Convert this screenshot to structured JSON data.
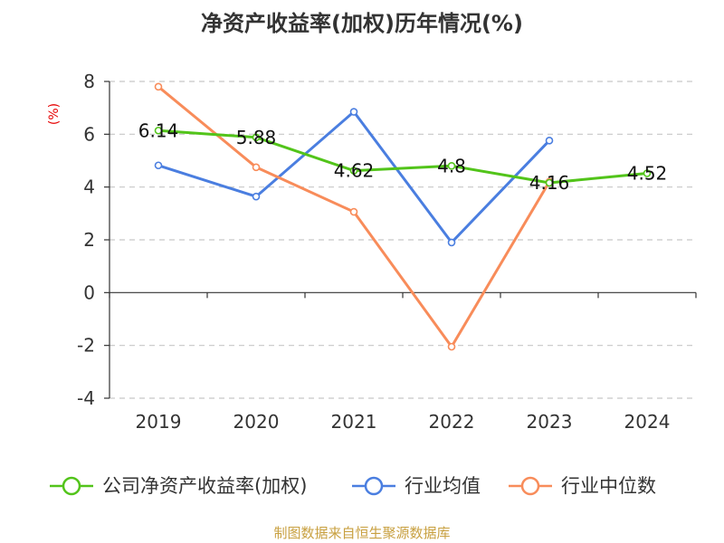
{
  "title": "净资产收益率(加权)历年情况(%)",
  "unit_label": "(%)",
  "source": "制图数据来自恒生聚源数据库",
  "colors": {
    "company": "#52c41a",
    "industry_avg": "#4a7ee0",
    "industry_median": "#f88c5a",
    "title": "#333333",
    "axis": "#333333",
    "grid": "#c8c8c8",
    "unit": "#e60000",
    "source": "#c8a040"
  },
  "chart_data": {
    "type": "line",
    "categories": [
      "2019",
      "2020",
      "2021",
      "2022",
      "2023",
      "2024"
    ],
    "y_ticks": [
      8,
      6,
      4,
      2,
      0,
      -2,
      -4
    ],
    "ylim": [
      -4,
      8
    ],
    "grid": true,
    "legend_position": "bottom",
    "series": [
      {
        "key": "company",
        "name": "公司净资产收益率(加权)",
        "values": [
          6.14,
          5.88,
          4.62,
          4.8,
          4.16,
          4.52
        ],
        "labels": [
          "6.14",
          "5.88",
          "4.62",
          "4.8",
          "4.16",
          "4.52"
        ]
      },
      {
        "key": "industry_avg",
        "name": "行业均值",
        "values": [
          4.82,
          3.64,
          6.85,
          1.9,
          5.76,
          null
        ]
      },
      {
        "key": "industry_median",
        "name": "行业中位数",
        "values": [
          7.8,
          4.75,
          3.06,
          -2.05,
          4.2,
          null
        ]
      }
    ]
  }
}
